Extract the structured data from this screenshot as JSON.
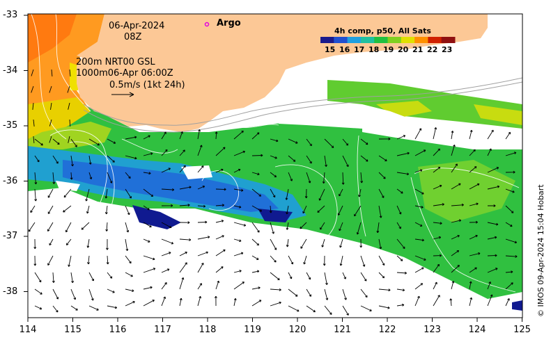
{
  "header": {
    "date": "06-Apr-2024",
    "time": "08Z",
    "current_line1": "200m  NRT00 GSL",
    "current_line2": "1000m06-Apr 06:00Z",
    "scale_label": "0.5m/s (1kt 24h)"
  },
  "argo": {
    "label": "Argo",
    "color": "#e000e0"
  },
  "colorbar": {
    "title": "4h comp, p50, All Sats",
    "ticks": [
      "15",
      "16",
      "17",
      "18",
      "19",
      "20",
      "21",
      "22",
      "23"
    ],
    "colors": [
      "#1a1a8c",
      "#2050d0",
      "#20a0e0",
      "#20c0a0",
      "#20c040",
      "#80d020",
      "#e0e000",
      "#ff9000",
      "#d02000",
      "#901010"
    ]
  },
  "axes": {
    "x_ticks": [
      "114",
      "115",
      "116",
      "117",
      "118",
      "119",
      "120",
      "121",
      "122",
      "123",
      "124",
      "125"
    ],
    "y_ticks": [
      "-33",
      "-34",
      "-35",
      "-36",
      "-37",
      "-38"
    ]
  },
  "credit": "© IMOS 09-Apr-2024 15:04 Hobart",
  "colors": {
    "land": "#fcc896",
    "frame": "#000000"
  }
}
